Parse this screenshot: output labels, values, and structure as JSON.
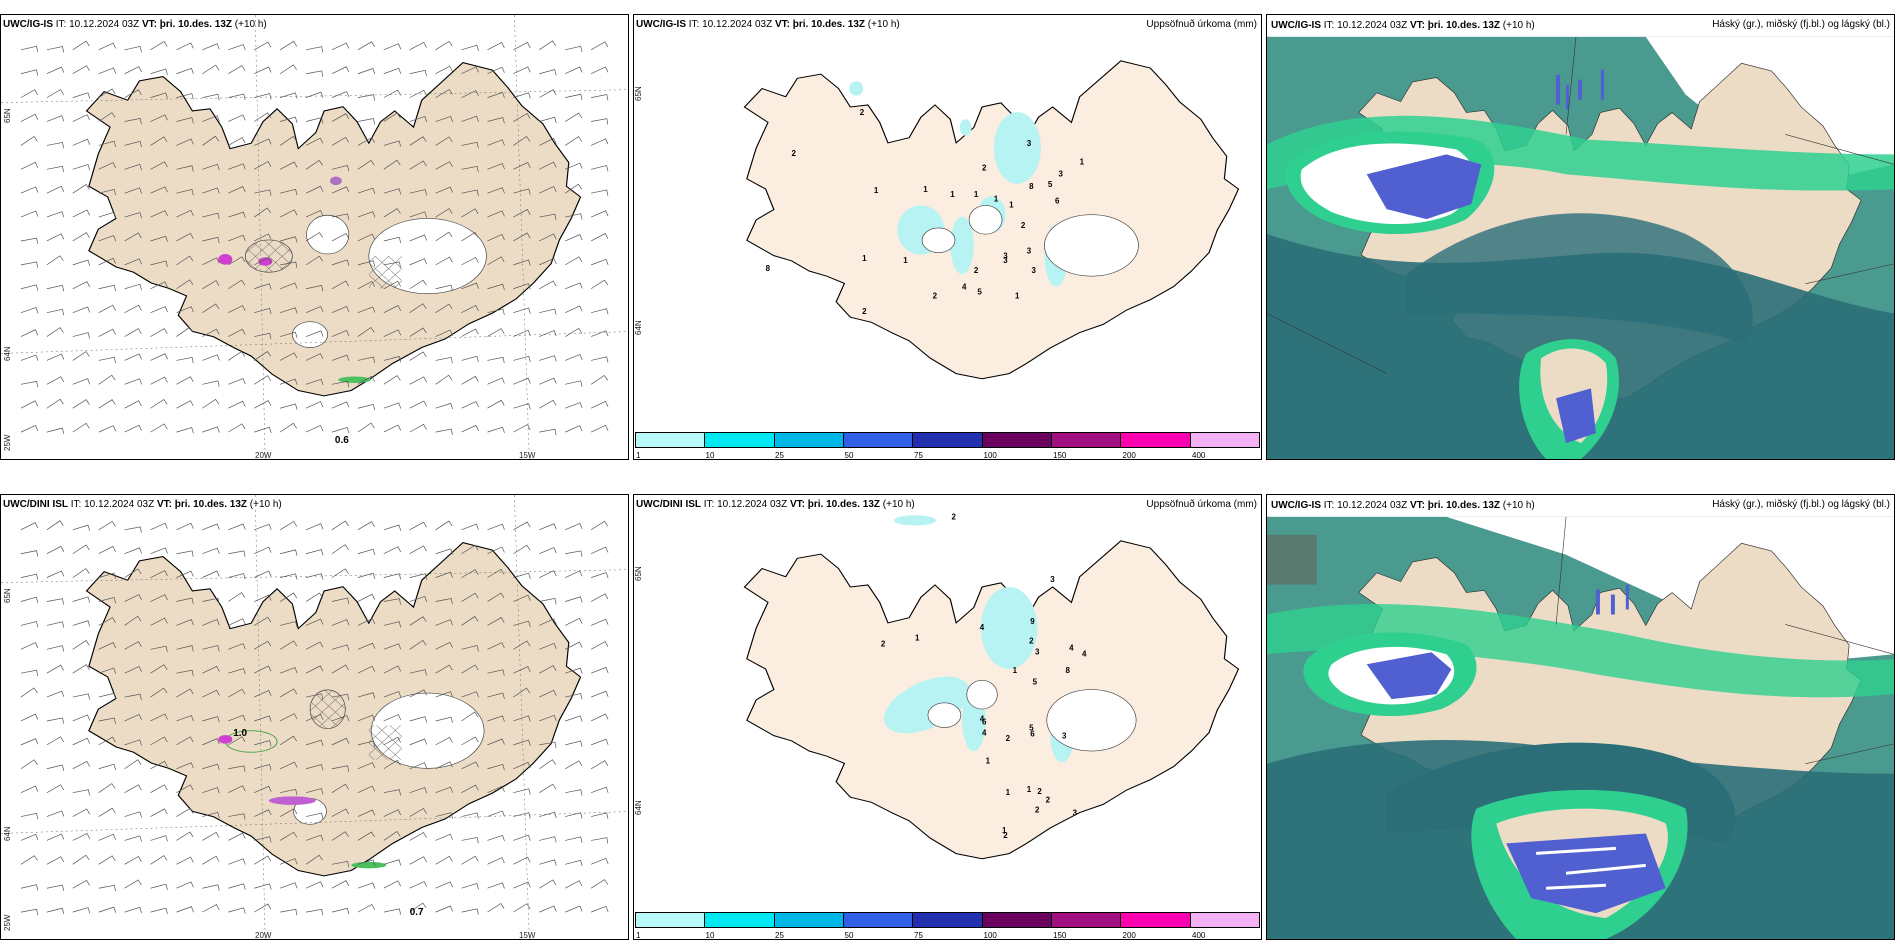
{
  "colors": {
    "land": "#ecdcc6",
    "land_light": "#fbeee0",
    "cyan": "#b8f3f3",
    "cloud_dark": "#2b6e78",
    "cloud_mid": "#4a9a90",
    "cloud_green": "#2fd08f",
    "cloud_blue": "#5060d0",
    "precip_palette": [
      "#b8f8f8",
      "#00e8f0",
      "#00b8e8",
      "#3060e8",
      "#2030b0",
      "#6a0060",
      "#a0107e",
      "#ff00b0",
      "#f4b0f4"
    ]
  },
  "panels": [
    {
      "id": "ig-wind",
      "model": "UWC/IG-IS",
      "it_label": "IT:",
      "it_value": "10.12.2024 03Z",
      "vt_label": "VT:",
      "vt_value": "þri. 10.des. 13Z",
      "lead": "(+10 h)",
      "right_title": "",
      "lat_labels": [
        "65N",
        "64N",
        "25W"
      ],
      "lon_labels": [
        "20W",
        "15W"
      ],
      "extra_value": "0.6"
    },
    {
      "id": "ig-precip",
      "model": "UWC/IG-IS",
      "it_label": "IT:",
      "it_value": "10.12.2024 03Z",
      "vt_label": "VT:",
      "vt_value": "þri. 10.des. 13Z",
      "lead": "(+10 h)",
      "right_title": "Uppsöfnuð úrkoma (mm)",
      "lat_labels": [
        "65N",
        "64N"
      ],
      "colorbar_ticks": [
        "1",
        "10",
        "25",
        "50",
        "75",
        "100",
        "150",
        "200",
        "400"
      ],
      "numbers": [
        "2",
        "2",
        "1",
        "1",
        "3",
        "2",
        "8",
        "5",
        "3",
        "6",
        "1",
        "1",
        "1",
        "1",
        "1",
        "1",
        "2",
        "3",
        "3",
        "2",
        "4",
        "5",
        "3",
        "3",
        "1",
        "2",
        "8",
        "2",
        "1"
      ]
    },
    {
      "id": "ig-cloud",
      "model": "UWC/IG-IS",
      "it_label": "IT:",
      "it_value": "10.12.2024 03Z",
      "vt_label": "VT:",
      "vt_value": "þri. 10.des. 13Z",
      "lead": "(+10 h)",
      "right_title": "Háský (gr.), miðský (fj.bl.) og lágský (bl.)"
    },
    {
      "id": "dini-wind",
      "model": "UWC/DINI ISL",
      "it_label": "IT:",
      "it_value": "10.12.2024 03Z",
      "vt_label": "VT:",
      "vt_value": "þri. 10.des. 13Z",
      "lead": "(+10 h)",
      "right_title": "",
      "lat_labels": [
        "65N",
        "64N",
        "25W"
      ],
      "lon_labels": [
        "20W",
        "15W"
      ],
      "extra_value": "0.7",
      "extra_value2": "1.0"
    },
    {
      "id": "dini-precip",
      "model": "UWC/DINI ISL",
      "it_label": "IT:",
      "it_value": "10.12.2024 03Z",
      "vt_label": "VT:",
      "vt_value": "þri. 10.des. 13Z",
      "lead": "(+10 h)",
      "right_title": "Uppsöfnuð úrkoma (mm)",
      "lat_labels": [
        "65N",
        "64N"
      ],
      "colorbar_ticks": [
        "1",
        "10",
        "25",
        "50",
        "75",
        "100",
        "150",
        "200",
        "400"
      ],
      "numbers": [
        "2",
        "3",
        "2",
        "1",
        "4",
        "9",
        "2",
        "3",
        "4",
        "4",
        "1",
        "8",
        "5",
        "6",
        "4",
        "4",
        "5",
        "6",
        "2",
        "1",
        "3",
        "2",
        "1",
        "2",
        "3",
        "1",
        "2",
        "1",
        "2"
      ]
    },
    {
      "id": "dini-cloud",
      "model": "UWC/IG-IS",
      "it_label": "IT:",
      "it_value": "10.12.2024 03Z",
      "vt_label": "VT:",
      "vt_value": "þri. 10.des. 13Z",
      "lead": "(+10 h)",
      "right_title": "Háský (gr.), miðský (fj.bl.) og lágský (bl.)"
    }
  ]
}
